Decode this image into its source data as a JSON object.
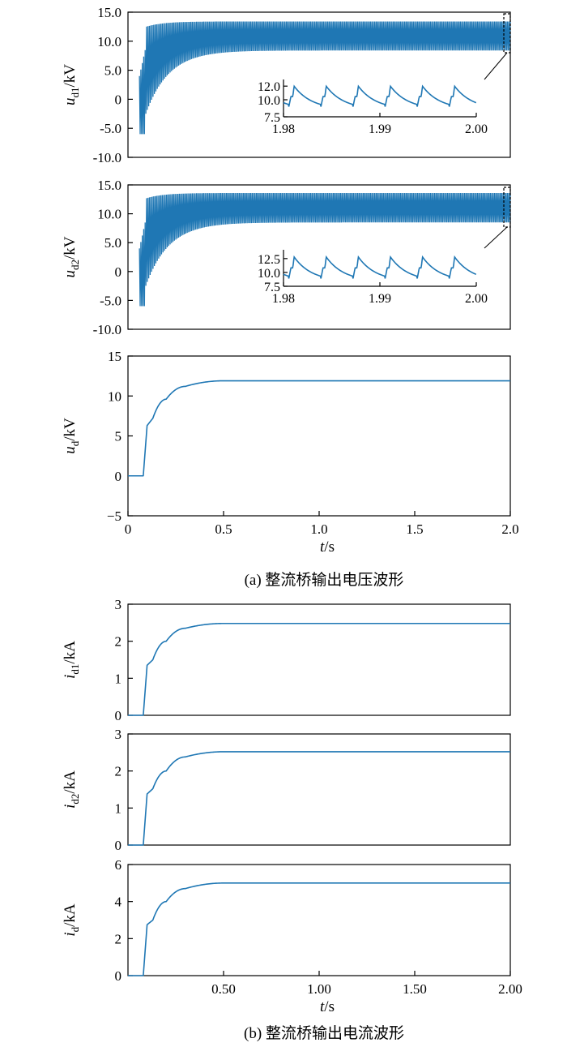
{
  "colors": {
    "trace": "#1f77b4",
    "axis": "#000000"
  },
  "chart_data": [
    {
      "id": "ud1",
      "type": "line",
      "ylabel": {
        "sym": "u",
        "sub": "d1",
        "unit": "/kV"
      },
      "xlim": [
        0,
        2.0
      ],
      "ylim": [
        -10,
        15
      ],
      "yticks": [
        "15.0",
        "10.0",
        "5.0",
        "0",
        "-5.0",
        "-10.0"
      ],
      "ytick_values": [
        15,
        10,
        5,
        0,
        -5,
        -10
      ],
      "xticks": [],
      "grid": false,
      "description_series": {
        "steady_min": 8.4,
        "steady_max": 13.4,
        "ripple": true
      },
      "inset": {
        "xlim": [
          1.98,
          2.0
        ],
        "ylim": [
          7.5,
          12.5
        ],
        "xticks": [
          "1.98",
          "1.99",
          "2.00"
        ],
        "xtick_values": [
          1.98,
          1.99,
          2.0
        ],
        "yticks": [
          "12.0",
          "10.0",
          "7.5"
        ],
        "ytick_values": [
          12.0,
          10.0,
          7.5
        ],
        "wave_min": 8.6,
        "wave_max": 12.0,
        "period_s": 0.00333
      }
    },
    {
      "id": "ud2",
      "type": "line",
      "ylabel": {
        "sym": "u",
        "sub": "d2",
        "unit": "/kV"
      },
      "xlim": [
        0,
        2.0
      ],
      "ylim": [
        -10,
        15
      ],
      "yticks": [
        "15.0",
        "10.0",
        "5.0",
        "0",
        "-5.0",
        "-10.0"
      ],
      "ytick_values": [
        15,
        10,
        5,
        0,
        -5,
        -10
      ],
      "xticks": [],
      "grid": false,
      "description_series": {
        "steady_min": 8.5,
        "steady_max": 13.6,
        "ripple": true
      },
      "inset": {
        "xlim": [
          1.98,
          2.0
        ],
        "ylim": [
          7.5,
          13.5
        ],
        "xticks": [
          "1.98",
          "1.99",
          "2.00"
        ],
        "xtick_values": [
          1.98,
          1.99,
          2.0
        ],
        "yticks": [
          "12.5",
          "10.0",
          "7.5"
        ],
        "ytick_values": [
          12.5,
          10.0,
          7.5
        ],
        "wave_min": 8.4,
        "wave_max": 12.8,
        "period_s": 0.00333
      }
    },
    {
      "id": "ud",
      "type": "line",
      "ylabel": {
        "sym": "u",
        "sub": "d",
        "unit": "/kV"
      },
      "xlabel": {
        "sym": "t",
        "unit": "/s"
      },
      "xlim": [
        0,
        2.0
      ],
      "ylim": [
        -5,
        15
      ],
      "yticks": [
        "15",
        "10",
        "5",
        "0",
        "−5"
      ],
      "ytick_values": [
        15,
        10,
        5,
        0,
        -5
      ],
      "xticks": [
        "0",
        "0.5",
        "1.0",
        "1.5",
        "2.0"
      ],
      "xtick_values": [
        0,
        0.5,
        1.0,
        1.5,
        2.0
      ],
      "grid": false,
      "series": [
        {
          "x": [
            0,
            0.08,
            0.1,
            0.13,
            0.2,
            0.3,
            0.5,
            2.0
          ],
          "y": [
            0,
            0,
            6.3,
            7.2,
            9.6,
            11.2,
            11.9,
            11.9
          ]
        }
      ],
      "caption": "(a)  整流桥输出电压波形"
    },
    {
      "id": "id1",
      "type": "line",
      "ylabel": {
        "sym": "i",
        "sub": "d1",
        "unit": "/kA"
      },
      "xlim": [
        0,
        2.0
      ],
      "ylim": [
        0,
        3
      ],
      "yticks": [
        "3",
        "2",
        "1",
        "0"
      ],
      "ytick_values": [
        3,
        2,
        1,
        0
      ],
      "xticks": [],
      "grid": false,
      "series": [
        {
          "x": [
            0,
            0.08,
            0.1,
            0.13,
            0.2,
            0.3,
            0.5,
            2.0
          ],
          "y": [
            0,
            0,
            1.35,
            1.5,
            2.0,
            2.35,
            2.48,
            2.48
          ]
        }
      ]
    },
    {
      "id": "id2",
      "type": "line",
      "ylabel": {
        "sym": "i",
        "sub": "d2",
        "unit": "/kA"
      },
      "xlim": [
        0,
        2.0
      ],
      "ylim": [
        0,
        3
      ],
      "yticks": [
        "3",
        "2",
        "1",
        "0"
      ],
      "ytick_values": [
        3,
        2,
        1,
        0
      ],
      "xticks": [],
      "grid": false,
      "series": [
        {
          "x": [
            0,
            0.08,
            0.1,
            0.13,
            0.2,
            0.3,
            0.5,
            2.0
          ],
          "y": [
            0,
            0,
            1.38,
            1.52,
            2.0,
            2.38,
            2.52,
            2.52
          ]
        }
      ]
    },
    {
      "id": "id",
      "type": "line",
      "ylabel": {
        "sym": "i",
        "sub": "d",
        "unit": "/kA"
      },
      "xlabel": {
        "sym": "t",
        "unit": "/s"
      },
      "xlim": [
        0,
        2.0
      ],
      "ylim": [
        0,
        6
      ],
      "yticks": [
        "6",
        "4",
        "2",
        "0"
      ],
      "ytick_values": [
        6,
        4,
        2,
        0
      ],
      "xticks": [
        "0.50",
        "1.00",
        "1.50",
        "2.00"
      ],
      "xtick_values": [
        0.5,
        1.0,
        1.5,
        2.0
      ],
      "grid": false,
      "series": [
        {
          "x": [
            0,
            0.08,
            0.1,
            0.13,
            0.2,
            0.3,
            0.5,
            2.0
          ],
          "y": [
            0,
            0,
            2.75,
            3.0,
            4.0,
            4.7,
            5.0,
            5.0
          ]
        }
      ],
      "caption": "(b)  整流桥输出电流波形"
    }
  ]
}
